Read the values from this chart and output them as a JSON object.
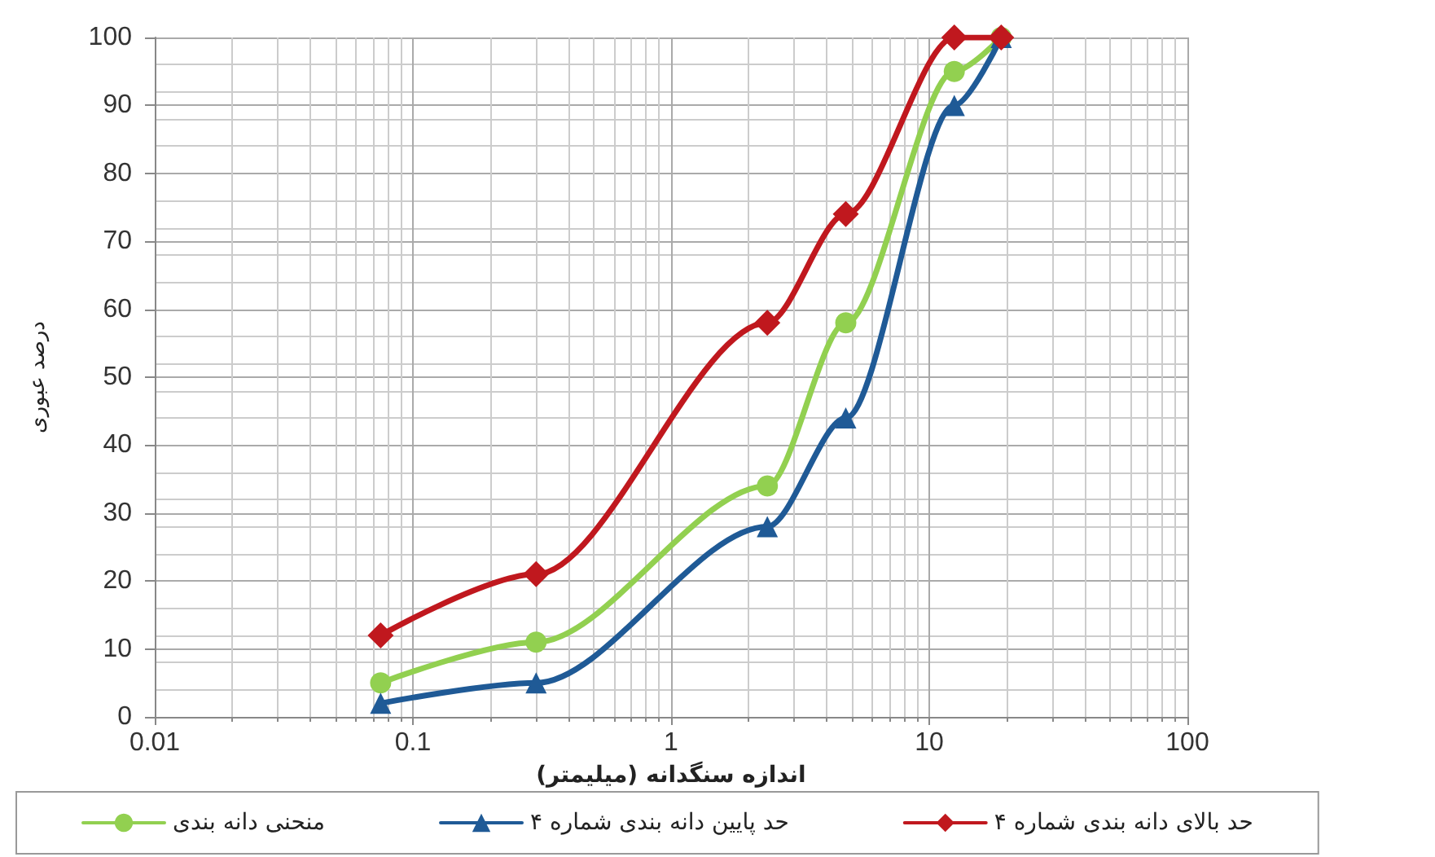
{
  "chart_data": {
    "type": "line",
    "xlabel": "اندازه سنگدانه (میلیمتر)",
    "ylabel": "درصد عبوری",
    "x": [
      0.075,
      0.3,
      2.36,
      4.75,
      12.5,
      19
    ],
    "series": [
      {
        "name": "منحنی دانه بندی",
        "color": "#92d050",
        "marker": "circle",
        "values": [
          5,
          11,
          34,
          58,
          95,
          100
        ]
      },
      {
        "name": "حد پایین دانه بندی شماره ۴",
        "color": "#1f5a96",
        "marker": "triangle",
        "values": [
          2,
          5,
          28,
          44,
          90,
          100
        ]
      },
      {
        "name": "حد بالای دانه بندی شماره ۴",
        "color": "#c0181e",
        "marker": "diamond",
        "values": [
          12,
          21,
          58,
          74,
          100,
          100
        ]
      }
    ],
    "log": "x",
    "xlim": [
      0.01,
      100
    ],
    "xticks": [
      0.01,
      0.1,
      1,
      10,
      100
    ],
    "ylim": [
      0,
      100
    ],
    "yticks": [
      0,
      10,
      20,
      30,
      40,
      50,
      60,
      70,
      80,
      90,
      100
    ],
    "grid": true,
    "legend": "bottom",
    "line_style": "solid"
  }
}
